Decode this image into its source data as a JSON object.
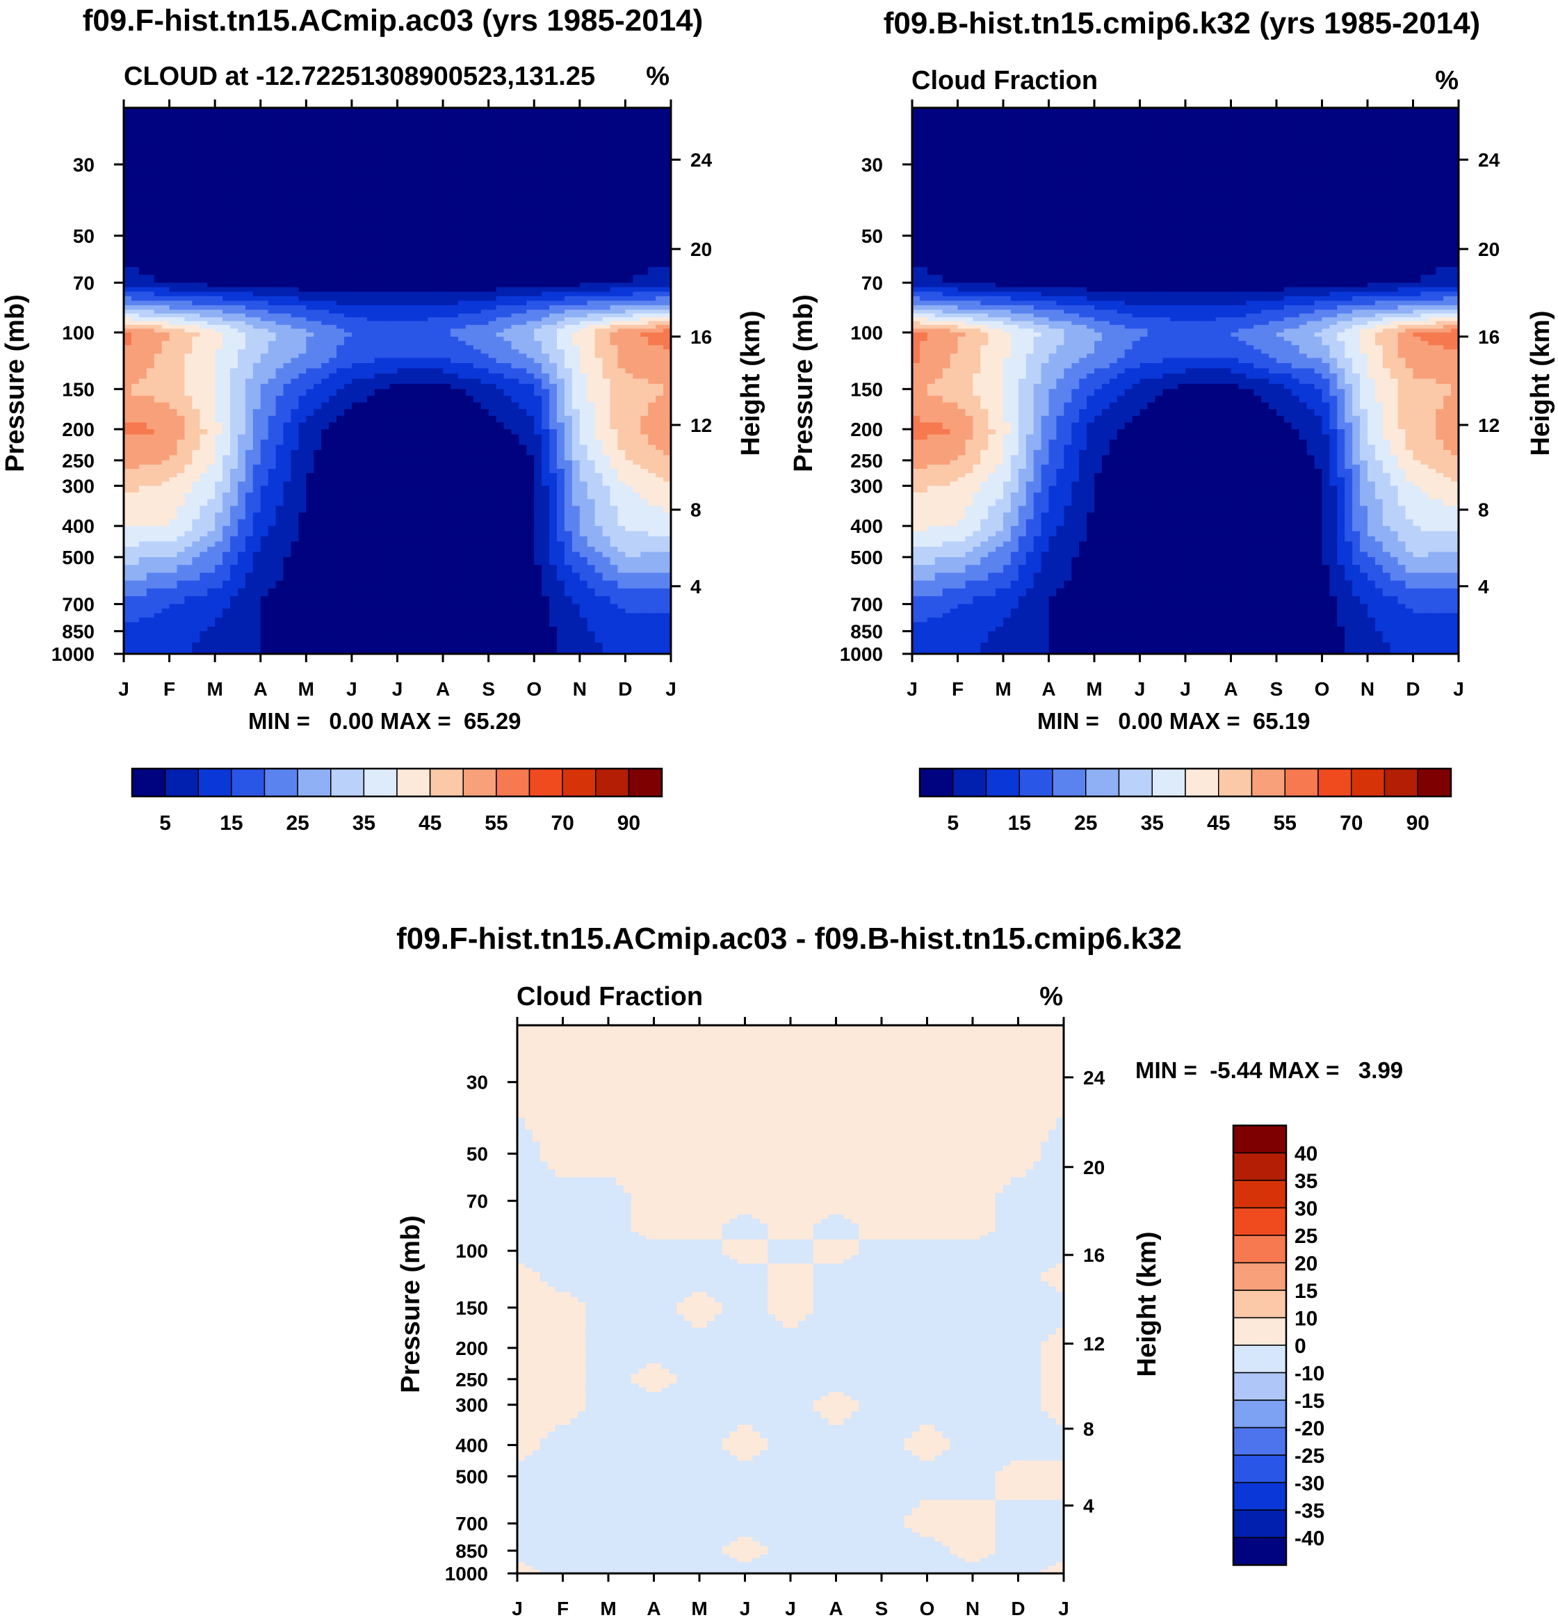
{
  "figure": {
    "panels": [
      {
        "title": "f09.F-hist.tn15.ACmip.ac03 (yrs 1985-2014)",
        "left_label": "CLOUD at -12.72251308900523,131.25",
        "right_label": "%",
        "stats": "MIN =   0.00 MAX =  65.29"
      },
      {
        "title": "f09.B-hist.tn15.cmip6.k32 (yrs 1985-2014)",
        "left_label": "Cloud Fraction",
        "right_label": "%",
        "stats": "MIN =   0.00 MAX =  65.19"
      },
      {
        "title": "f09.F-hist.tn15.ACmip.ac03 - f09.B-hist.tn15.cmip6.k32",
        "left_label": "Cloud Fraction",
        "right_label": "%",
        "stats": "MIN =  -5.44 MAX =   3.99"
      }
    ]
  },
  "colors": {
    "seq": [
      "#00037f",
      "#0220b0",
      "#0a37d8",
      "#2a56e8",
      "#5b83f0",
      "#8fb0f5",
      "#bad2fa",
      "#deebfb",
      "#fde9d9",
      "#fbc8a8",
      "#f8a07a",
      "#f6794f",
      "#f04b1e",
      "#d73308",
      "#b31e04",
      "#7f0000"
    ],
    "diff": [
      "#00037f",
      "#0220b0",
      "#0a37d8",
      "#2a56e8",
      "#4e74ed",
      "#7da1f3",
      "#aec7f8",
      "#d6e6fb",
      "#fde9d9",
      "#fbc8a8",
      "#f8a07a",
      "#f6794f",
      "#f04b1e",
      "#d73308",
      "#b31e04",
      "#7f0000"
    ]
  },
  "chart_data": [
    {
      "type": "contour",
      "title": "f09.F-hist.tn15.ACmip.ac03 (yrs 1985-2014)",
      "variable": "CLOUD at -12.72251308900523,131.25",
      "units": "%",
      "xlabel": "",
      "ylabel": "Pressure (mb)",
      "ylabel_right": "Height (km)",
      "x_ticks": [
        "J",
        "F",
        "M",
        "A",
        "M",
        "J",
        "J",
        "A",
        "S",
        "O",
        "N",
        "D",
        "J"
      ],
      "y_ticks": [
        30,
        50,
        70,
        100,
        150,
        200,
        250,
        300,
        400,
        500,
        700,
        850,
        1000
      ],
      "y2_ticks": [
        4,
        8,
        12,
        16,
        20,
        24
      ],
      "ylim": [
        1000,
        20
      ],
      "levels_labeled": [
        "5",
        "15",
        "25",
        "35",
        "45",
        "55",
        "70",
        "90"
      ],
      "levels": [
        0,
        5,
        10,
        15,
        20,
        25,
        30,
        35,
        40,
        45,
        50,
        55,
        60,
        70,
        80,
        90,
        100
      ],
      "pressure": [
        20,
        30,
        50,
        70,
        85,
        100,
        120,
        150,
        200,
        250,
        300,
        400,
        500,
        700,
        850,
        1000
      ],
      "values": [
        [
          0,
          0,
          0,
          0,
          0,
          0,
          0,
          0,
          0,
          0,
          0,
          0,
          0
        ],
        [
          0,
          0,
          0,
          0,
          0,
          0,
          0,
          0,
          0,
          0,
          0,
          0,
          0
        ],
        [
          0,
          0,
          0,
          0,
          0,
          0,
          0,
          0,
          0,
          0,
          0,
          0,
          0
        ],
        [
          8,
          4,
          3,
          2,
          1,
          0,
          0,
          0,
          1,
          2,
          3,
          5,
          8
        ],
        [
          30,
          27,
          24,
          20,
          16,
          12,
          12,
          12,
          15,
          20,
          25,
          28,
          30
        ],
        [
          56,
          50,
          42,
          32,
          26,
          20,
          18,
          20,
          24,
          30,
          42,
          54,
          58
        ],
        [
          55,
          48,
          40,
          30,
          24,
          17,
          15,
          15,
          20,
          26,
          40,
          52,
          54
        ],
        [
          50,
          47,
          40,
          25,
          15,
          8,
          3,
          3,
          8,
          14,
          38,
          48,
          50
        ],
        [
          56,
          55,
          42,
          22,
          8,
          1,
          0,
          0,
          2,
          8,
          36,
          48,
          54
        ],
        [
          52,
          50,
          40,
          19,
          6,
          0,
          0,
          0,
          0,
          5,
          32,
          45,
          50
        ],
        [
          46,
          44,
          36,
          16,
          5,
          0,
          0,
          0,
          0,
          4,
          28,
          40,
          44
        ],
        [
          40,
          40,
          30,
          12,
          4,
          0,
          0,
          0,
          0,
          4,
          26,
          36,
          38
        ],
        [
          32,
          30,
          22,
          8,
          3,
          0,
          0,
          0,
          0,
          4,
          20,
          30,
          28
        ],
        [
          18,
          15,
          12,
          5,
          2,
          0,
          0,
          0,
          0,
          2,
          10,
          16,
          16
        ],
        [
          14,
          13,
          9,
          5,
          2,
          0,
          0,
          0,
          0,
          2,
          9,
          13,
          13
        ],
        [
          13,
          13,
          7,
          5,
          2,
          0,
          0,
          0,
          0,
          2,
          7,
          12,
          12
        ]
      ]
    },
    {
      "type": "contour",
      "title": "f09.B-hist.tn15.cmip6.k32 (yrs 1985-2014)",
      "variable": "Cloud Fraction",
      "units": "%",
      "xlabel": "",
      "ylabel": "Pressure (mb)",
      "ylabel_right": "Height (km)",
      "x_ticks": [
        "J",
        "F",
        "M",
        "A",
        "M",
        "J",
        "J",
        "A",
        "S",
        "O",
        "N",
        "D",
        "J"
      ],
      "y_ticks": [
        30,
        50,
        70,
        100,
        150,
        200,
        250,
        300,
        400,
        500,
        700,
        850,
        1000
      ],
      "y2_ticks": [
        4,
        8,
        12,
        16,
        20,
        24
      ],
      "ylim": [
        1000,
        20
      ],
      "levels_labeled": [
        "5",
        "15",
        "25",
        "35",
        "45",
        "55",
        "70",
        "90"
      ],
      "levels": [
        0,
        5,
        10,
        15,
        20,
        25,
        30,
        35,
        40,
        45,
        50,
        55,
        60,
        70,
        80,
        90,
        100
      ],
      "pressure": [
        20,
        30,
        50,
        70,
        85,
        100,
        120,
        150,
        200,
        250,
        300,
        400,
        500,
        700,
        850,
        1000
      ],
      "values": [
        [
          0,
          0,
          0,
          0,
          0,
          0,
          0,
          0,
          0,
          0,
          0,
          0,
          0
        ],
        [
          0,
          0,
          0,
          0,
          0,
          0,
          0,
          0,
          0,
          0,
          0,
          0,
          0
        ],
        [
          0,
          0,
          0,
          0,
          0,
          0,
          0,
          0,
          0,
          0,
          0,
          0,
          0
        ],
        [
          8,
          4,
          3,
          2,
          1,
          0,
          0,
          0,
          1,
          2,
          3,
          5,
          8
        ],
        [
          30,
          27,
          24,
          20,
          16,
          12,
          12,
          12,
          15,
          20,
          25,
          28,
          30
        ],
        [
          57,
          51,
          42,
          33,
          26,
          21,
          18,
          20,
          25,
          31,
          43,
          55,
          58
        ],
        [
          56,
          49,
          41,
          30,
          24,
          17,
          15,
          15,
          21,
          26,
          41,
          53,
          54
        ],
        [
          51,
          47,
          40,
          26,
          15,
          8,
          3,
          3,
          8,
          15,
          38,
          48,
          50
        ],
        [
          57,
          55,
          42,
          22,
          8,
          2,
          0,
          0,
          2,
          8,
          36,
          48,
          53
        ],
        [
          52,
          50,
          40,
          19,
          6,
          0,
          0,
          0,
          0,
          6,
          32,
          45,
          50
        ],
        [
          46,
          44,
          36,
          16,
          5,
          0,
          0,
          0,
          0,
          4,
          28,
          40,
          44
        ],
        [
          41,
          40,
          30,
          12,
          4,
          0,
          0,
          0,
          0,
          4,
          26,
          35,
          37
        ],
        [
          33,
          30,
          22,
          8,
          3,
          0,
          0,
          0,
          0,
          4,
          20,
          30,
          28
        ],
        [
          18,
          15,
          12,
          5,
          2,
          0,
          0,
          0,
          0,
          2,
          10,
          16,
          16
        ],
        [
          14,
          13,
          9,
          5,
          2,
          0,
          0,
          0,
          0,
          2,
          9,
          13,
          13
        ],
        [
          13,
          13,
          7,
          5,
          2,
          0,
          0,
          0,
          0,
          2,
          7,
          12,
          12
        ]
      ]
    },
    {
      "type": "contour",
      "title": "f09.F-hist.tn15.ACmip.ac03 - f09.B-hist.tn15.cmip6.k32",
      "variable": "Cloud Fraction",
      "units": "%",
      "xlabel": "",
      "ylabel": "Pressure (mb)",
      "ylabel_right": "Height (km)",
      "x_ticks": [
        "J",
        "F",
        "M",
        "A",
        "M",
        "J",
        "J",
        "A",
        "S",
        "O",
        "N",
        "D",
        "J"
      ],
      "y_ticks": [
        30,
        50,
        70,
        100,
        150,
        200,
        250,
        300,
        400,
        500,
        700,
        850,
        1000
      ],
      "y2_ticks": [
        4,
        8,
        12,
        16,
        20,
        24
      ],
      "ylim": [
        1000,
        20
      ],
      "levels_labeled": [
        "40",
        "35",
        "30",
        "25",
        "20",
        "15",
        "10",
        "0",
        "-10",
        "-15",
        "-20",
        "-25",
        "-30",
        "-35",
        "-40"
      ],
      "levels": [
        -1000,
        -40,
        -35,
        -30,
        -25,
        -20,
        -15,
        -10,
        0,
        10,
        15,
        20,
        25,
        30,
        35,
        40,
        1000
      ],
      "pressure": [
        20,
        30,
        50,
        70,
        85,
        100,
        120,
        150,
        200,
        250,
        300,
        400,
        500,
        700,
        850,
        1000
      ],
      "values": [
        [
          1,
          1,
          1,
          1,
          1,
          1,
          1,
          1,
          1,
          1,
          1,
          1,
          1
        ],
        [
          1,
          1,
          1,
          1,
          1,
          1,
          1,
          1,
          1,
          1,
          1,
          1,
          1
        ],
        [
          -1,
          1,
          1,
          1,
          1,
          1,
          1,
          1,
          1,
          1,
          1,
          1,
          -1
        ],
        [
          -1,
          -1,
          -1,
          1,
          1,
          1,
          1,
          1,
          1,
          1,
          1,
          -1,
          -1
        ],
        [
          -1,
          -1,
          -1,
          1,
          1,
          -1,
          1,
          -1,
          1,
          1,
          1,
          -1,
          -1
        ],
        [
          -1,
          -1,
          -1,
          -1,
          -1,
          1,
          -1,
          1,
          -1,
          -1,
          -1,
          -1,
          -1
        ],
        [
          1,
          -1,
          -1,
          -1,
          -1,
          -1,
          1,
          -1,
          -1,
          -1,
          -1,
          -1,
          1
        ],
        [
          1,
          1,
          -1,
          -1,
          1,
          -1,
          1,
          -1,
          -1,
          -1,
          -1,
          -1,
          -1
        ],
        [
          1,
          1,
          -1,
          -1,
          -1,
          -1,
          -1,
          -1,
          -1,
          -1,
          -1,
          -1,
          1
        ],
        [
          1,
          1,
          -1,
          1,
          -1,
          -1,
          -1,
          -1,
          -1,
          -1,
          -1,
          -1,
          1
        ],
        [
          1,
          1,
          -1,
          -1,
          -1,
          -1,
          -1,
          1,
          -1,
          -1,
          -1,
          -1,
          1
        ],
        [
          1,
          -1,
          -1,
          -1,
          -1,
          1,
          -1,
          -1,
          -1,
          1,
          -1,
          -1,
          -1
        ],
        [
          -1,
          -1,
          -1,
          -1,
          -1,
          -1,
          -1,
          -1,
          -1,
          -1,
          -1,
          1,
          1
        ],
        [
          -1,
          -1,
          -1,
          -1,
          -1,
          -1,
          -1,
          -1,
          -1,
          1,
          1,
          -1,
          -1
        ],
        [
          -1,
          -1,
          -1,
          -1,
          -1,
          1,
          -1,
          -1,
          -1,
          -1,
          1,
          -1,
          -1
        ],
        [
          1,
          -1,
          -1,
          -1,
          -1,
          -1,
          -1,
          -1,
          -1,
          -1,
          -1,
          -1,
          1
        ]
      ]
    }
  ],
  "axes": {
    "ylabel": "Pressure (mb)",
    "ylabel_right": "Height (km)",
    "x_ticks": [
      "J",
      "F",
      "M",
      "A",
      "M",
      "J",
      "J",
      "A",
      "S",
      "O",
      "N",
      "D",
      "J"
    ],
    "y_ticks": [
      "30",
      "50",
      "70",
      "100",
      "150",
      "200",
      "250",
      "300",
      "400",
      "500",
      "700",
      "850",
      "1000"
    ],
    "y2_ticks": [
      "4",
      "8",
      "12",
      "16",
      "20",
      "24"
    ]
  },
  "colorbars": {
    "seq_labels": [
      "5",
      "15",
      "25",
      "35",
      "45",
      "55",
      "70",
      "90"
    ],
    "diff_labels": [
      "40",
      "35",
      "30",
      "25",
      "20",
      "15",
      "10",
      "0",
      "-10",
      "-15",
      "-20",
      "-25",
      "-30",
      "-35",
      "-40"
    ]
  }
}
